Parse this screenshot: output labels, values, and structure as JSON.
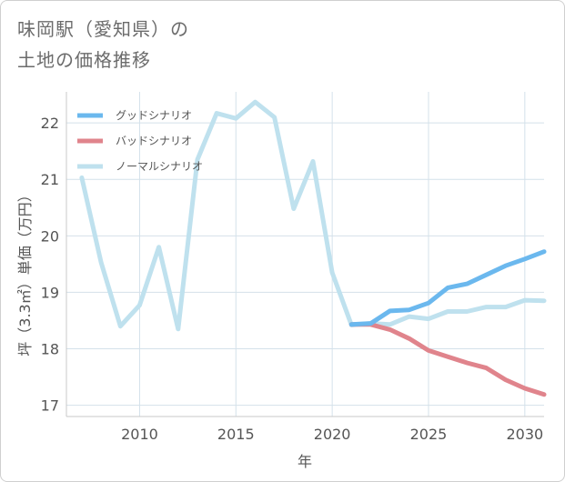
{
  "title": {
    "line1": "味岡駅（愛知県）の",
    "line2": "土地の価格推移"
  },
  "chart_data": {
    "type": "line",
    "xlabel": "年",
    "ylabel": "坪（3.3㎡）単価（万円）",
    "xlim": [
      2006.2,
      2031.0
    ],
    "ylim": [
      16.8,
      22.55
    ],
    "x_ticks": [
      2010,
      2015,
      2020,
      2025,
      2030
    ],
    "y_ticks": [
      17,
      18,
      19,
      20,
      21,
      22
    ],
    "grid": true,
    "legend_position": "top-left",
    "series": [
      {
        "name": "グッドシナリオ",
        "color": "#6bb8ee",
        "x": [
          2021,
          2022,
          2023,
          2024,
          2025,
          2026,
          2027,
          2028,
          2029,
          2030,
          2031
        ],
        "values": [
          18.43,
          18.45,
          18.67,
          18.69,
          18.81,
          19.08,
          19.15,
          19.31,
          19.47,
          19.59,
          19.72
        ]
      },
      {
        "name": "バッドシナリオ",
        "color": "#e0848c",
        "x": [
          2021,
          2022,
          2023,
          2024,
          2025,
          2026,
          2027,
          2028,
          2029,
          2030,
          2031
        ],
        "values": [
          18.43,
          18.43,
          18.34,
          18.18,
          17.97,
          17.86,
          17.75,
          17.66,
          17.45,
          17.3,
          17.19
        ]
      },
      {
        "name": "ノーマルシナリオ",
        "color": "#bfe1ee",
        "x": [
          2007,
          2008,
          2009,
          2010,
          2011,
          2012,
          2013,
          2014,
          2015,
          2016,
          2017,
          2018,
          2019,
          2020,
          2021,
          2022,
          2023,
          2024,
          2025,
          2026,
          2027,
          2028,
          2029,
          2030,
          2031
        ],
        "values": [
          21.03,
          19.53,
          18.4,
          18.77,
          19.8,
          18.35,
          21.35,
          22.17,
          22.08,
          22.37,
          22.1,
          20.48,
          21.32,
          19.35,
          18.42,
          18.45,
          18.43,
          18.57,
          18.53,
          18.66,
          18.66,
          18.74,
          18.74,
          18.86,
          18.85
        ]
      }
    ]
  }
}
